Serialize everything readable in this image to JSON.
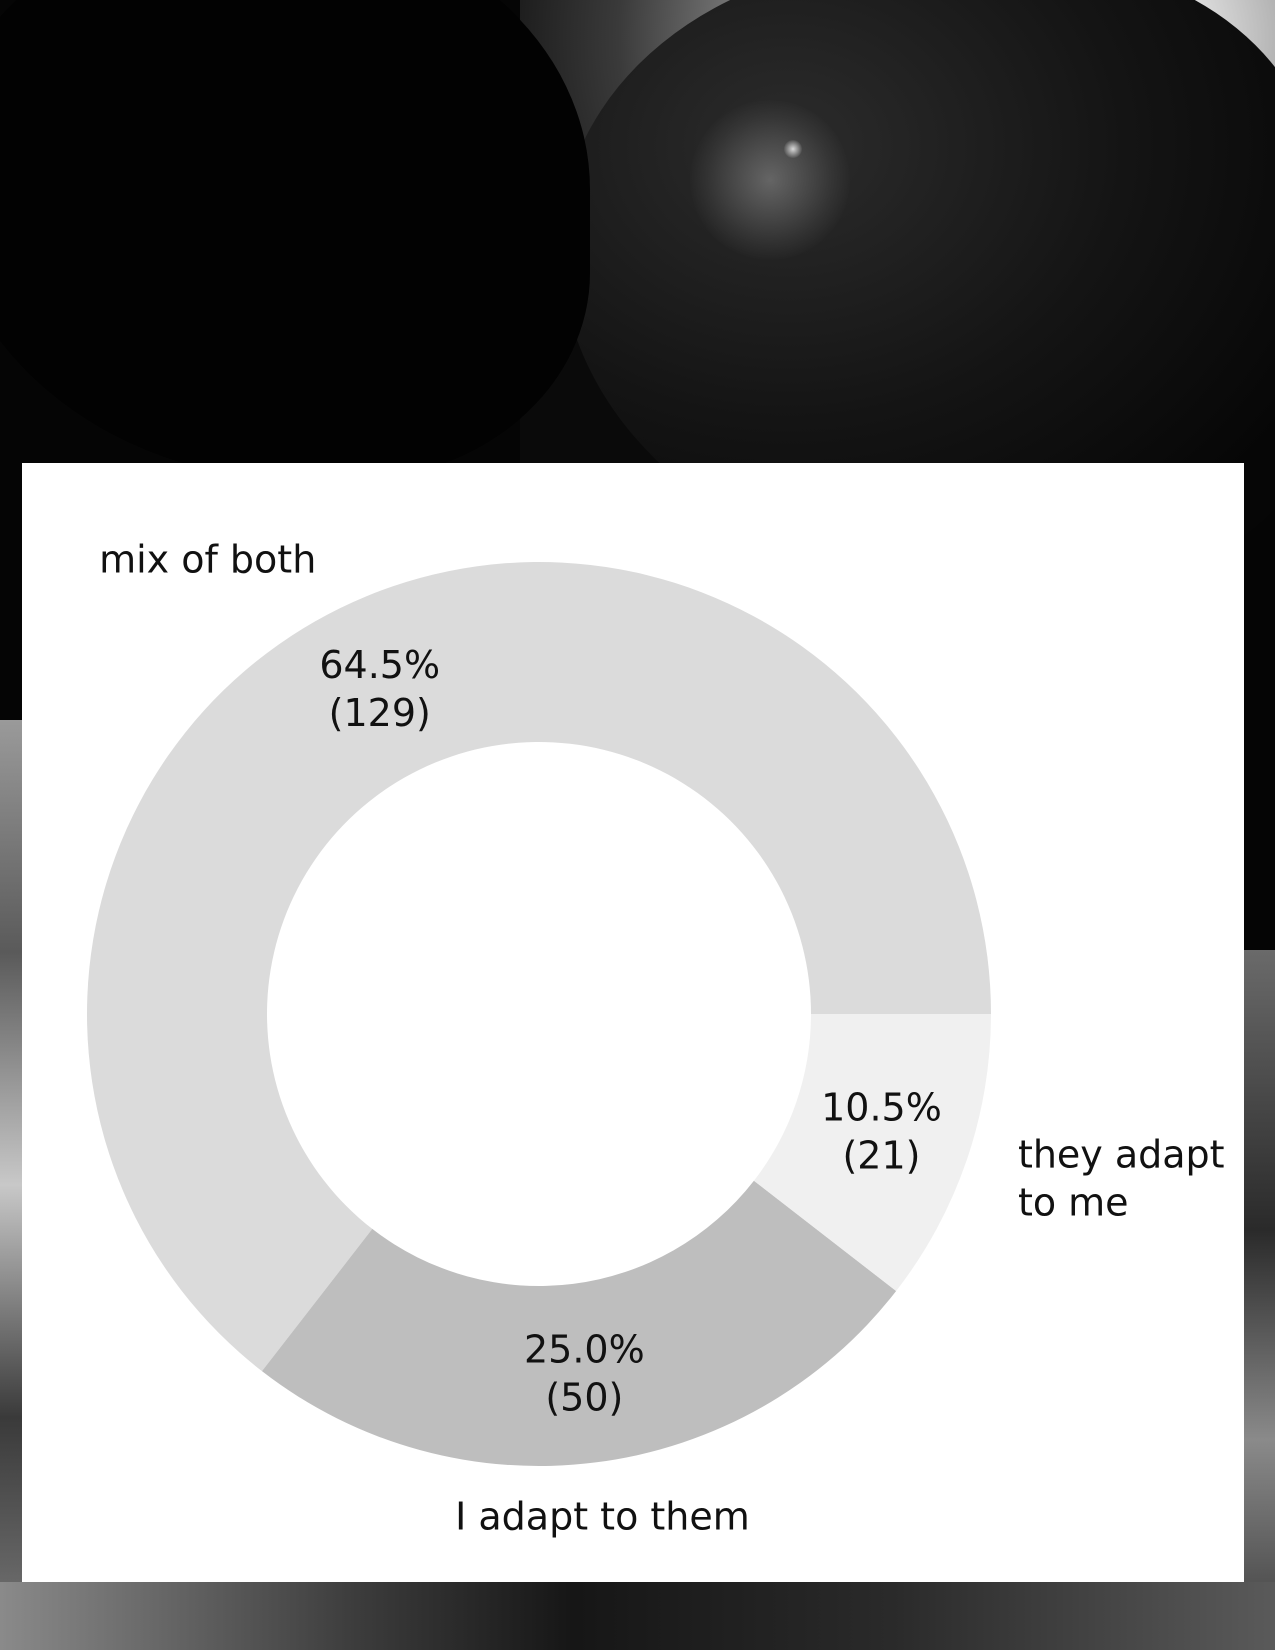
{
  "chart_data": {
    "type": "pie",
    "donut": true,
    "title": "",
    "start_angle_deg": 0,
    "direction": "counterclockwise",
    "colors": [
      "#dbdbdb",
      "#bebebe",
      "#f0f0f0"
    ],
    "slices": [
      {
        "label": "mix of both",
        "percent_label": "64.5%",
        "count_label": "(129)",
        "value": 129
      },
      {
        "label": "I adapt to them",
        "percent_label": "25.0%",
        "count_label": "(50)",
        "value": 50
      },
      {
        "label": "they adapt\nto me",
        "percent_label": "10.5%",
        "count_label": "(21)",
        "value": 21
      }
    ]
  }
}
